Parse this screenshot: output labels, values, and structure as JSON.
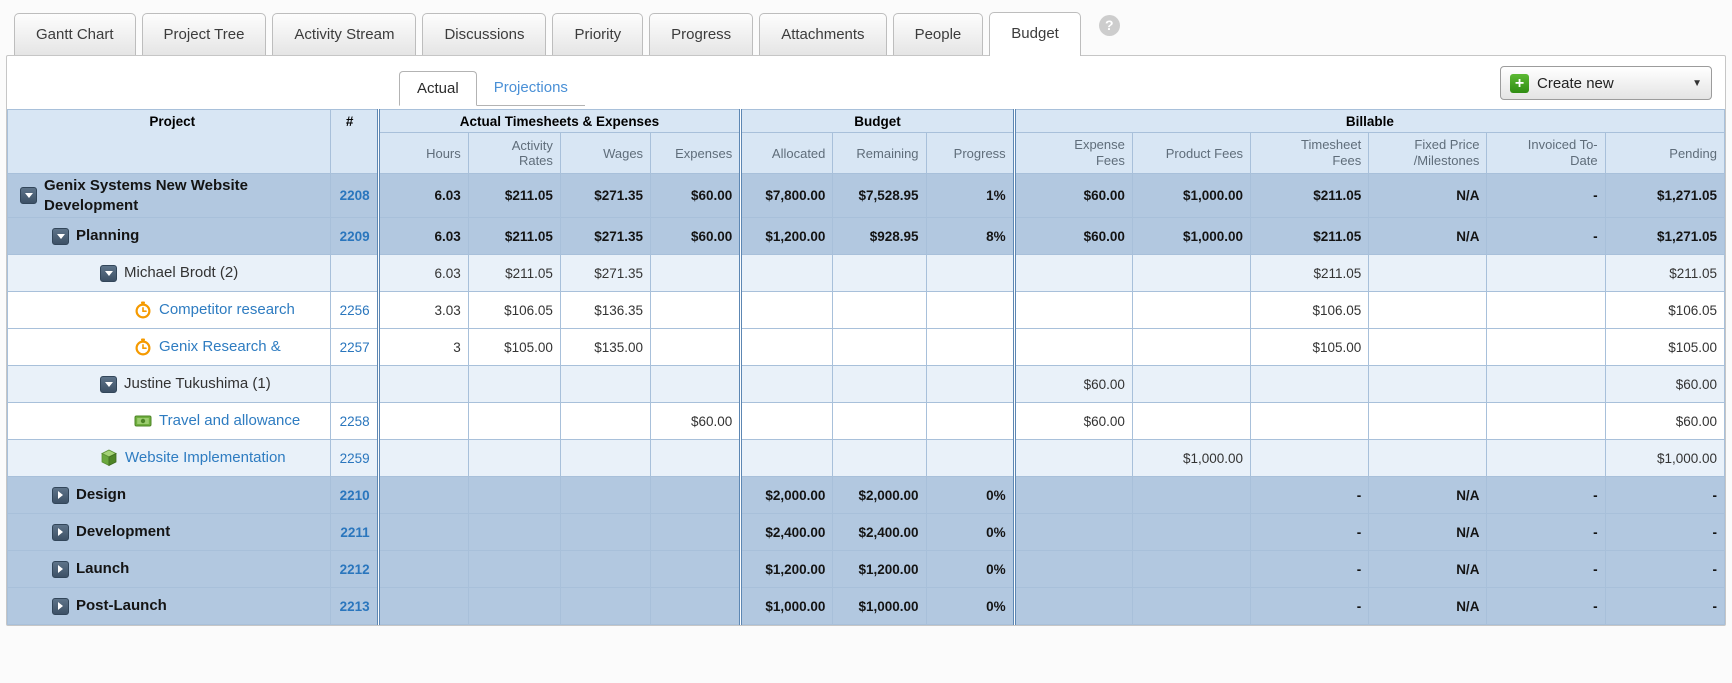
{
  "tabs": {
    "items": [
      {
        "label": "Gantt Chart",
        "active": false
      },
      {
        "label": "Project Tree",
        "active": false
      },
      {
        "label": "Activity Stream",
        "active": false
      },
      {
        "label": "Discussions",
        "active": false
      },
      {
        "label": "Priority",
        "active": false
      },
      {
        "label": "Progress",
        "active": false
      },
      {
        "label": "Attachments",
        "active": false
      },
      {
        "label": "People",
        "active": false
      },
      {
        "label": "Budget",
        "active": true
      }
    ],
    "help_icon": "?"
  },
  "toolbar": {
    "subtabs": [
      {
        "label": "Actual",
        "active": true
      },
      {
        "label": "Projections",
        "active": false
      }
    ],
    "create_new_label": "Create new",
    "accent_green": "#3a9a1d",
    "link_blue": "#2e7cc1"
  },
  "table": {
    "header": {
      "project": "Project",
      "number": "#",
      "groups": {
        "actual": "Actual Timesheets & Expenses",
        "budget": "Budget",
        "billable": "Billable"
      },
      "columns": [
        "Hours",
        "Activity Rates",
        "Wages",
        "Expenses",
        "Allocated",
        "Remaining",
        "Progress",
        "Expense Fees",
        "Product Fees",
        "Timesheet Fees",
        "Fixed Price /Milestones",
        "Invoiced To-Date",
        "Pending"
      ]
    },
    "rows": [
      {
        "name": "Genix Systems New Website Development",
        "number": "2208",
        "type": "group",
        "level": 0,
        "icon": "triangle-down",
        "cells": [
          "6.03",
          "$211.05",
          "$271.35",
          "$60.00",
          "$7,800.00",
          "$7,528.95",
          "1%",
          "$60.00",
          "$1,000.00",
          "$211.05",
          "N/A",
          "-",
          "$1,271.05"
        ]
      },
      {
        "name": "Planning",
        "number": "2209",
        "type": "group",
        "level": 1,
        "icon": "triangle-down",
        "cells": [
          "6.03",
          "$211.05",
          "$271.35",
          "$60.00",
          "$1,200.00",
          "$928.95",
          "8%",
          "$60.00",
          "$1,000.00",
          "$211.05",
          "N/A",
          "-",
          "$1,271.05"
        ]
      },
      {
        "name": "Michael Brodt (2)",
        "number": "",
        "type": "person",
        "level": 2,
        "icon": "triangle-down",
        "cells": [
          "6.03",
          "$211.05",
          "$271.35",
          "",
          "",
          "",
          "",
          "",
          "",
          "$211.05",
          "",
          "",
          "$211.05"
        ]
      },
      {
        "name": "Competitor research",
        "number": "2256",
        "type": "task",
        "level": 3,
        "icon": "clock",
        "cells": [
          "3.03",
          "$106.05",
          "$136.35",
          "",
          "",
          "",
          "",
          "",
          "",
          "$106.05",
          "",
          "",
          "$106.05"
        ]
      },
      {
        "name": "Genix Research &",
        "number": "2257",
        "type": "task",
        "level": 3,
        "icon": "clock",
        "cells": [
          "3",
          "$105.00",
          "$135.00",
          "",
          "",
          "",
          "",
          "",
          "",
          "$105.00",
          "",
          "",
          "$105.00"
        ]
      },
      {
        "name": "Justine Tukushima (1)",
        "number": "",
        "type": "person",
        "level": 2,
        "icon": "triangle-down",
        "cells": [
          "",
          "",
          "",
          "",
          "",
          "",
          "",
          "$60.00",
          "",
          "",
          "",
          "",
          "$60.00"
        ]
      },
      {
        "name": "Travel and allowance",
        "number": "2258",
        "type": "task",
        "level": 3,
        "icon": "expense",
        "cells": [
          "",
          "",
          "",
          "$60.00",
          "",
          "",
          "",
          "$60.00",
          "",
          "",
          "",
          "",
          "$60.00"
        ]
      },
      {
        "name": "Website Implementation",
        "number": "2259",
        "type": "task",
        "level": 2,
        "icon": "product",
        "cells": [
          "",
          "",
          "",
          "",
          "",
          "",
          "",
          "",
          "$1,000.00",
          "",
          "",
          "",
          "$1,000.00"
        ]
      },
      {
        "name": "Design",
        "number": "2210",
        "type": "group",
        "level": 1,
        "icon": "triangle-right",
        "cells": [
          "",
          "",
          "",
          "",
          "$2,000.00",
          "$2,000.00",
          "0%",
          "",
          "",
          "-",
          "N/A",
          "-",
          "-"
        ]
      },
      {
        "name": "Development",
        "number": "2211",
        "type": "group",
        "level": 1,
        "icon": "triangle-right",
        "cells": [
          "",
          "",
          "",
          "",
          "$2,400.00",
          "$2,400.00",
          "0%",
          "",
          "",
          "-",
          "N/A",
          "-",
          "-"
        ]
      },
      {
        "name": "Launch",
        "number": "2212",
        "type": "group",
        "level": 1,
        "icon": "triangle-right",
        "cells": [
          "",
          "",
          "",
          "",
          "$1,200.00",
          "$1,200.00",
          "0%",
          "",
          "",
          "-",
          "N/A",
          "-",
          "-"
        ]
      },
      {
        "name": "Post-Launch",
        "number": "2213",
        "type": "group",
        "level": 1,
        "icon": "triangle-right",
        "cells": [
          "",
          "",
          "",
          "",
          "$1,000.00",
          "$1,000.00",
          "0%",
          "",
          "",
          "-",
          "N/A",
          "-",
          "-"
        ]
      }
    ]
  }
}
